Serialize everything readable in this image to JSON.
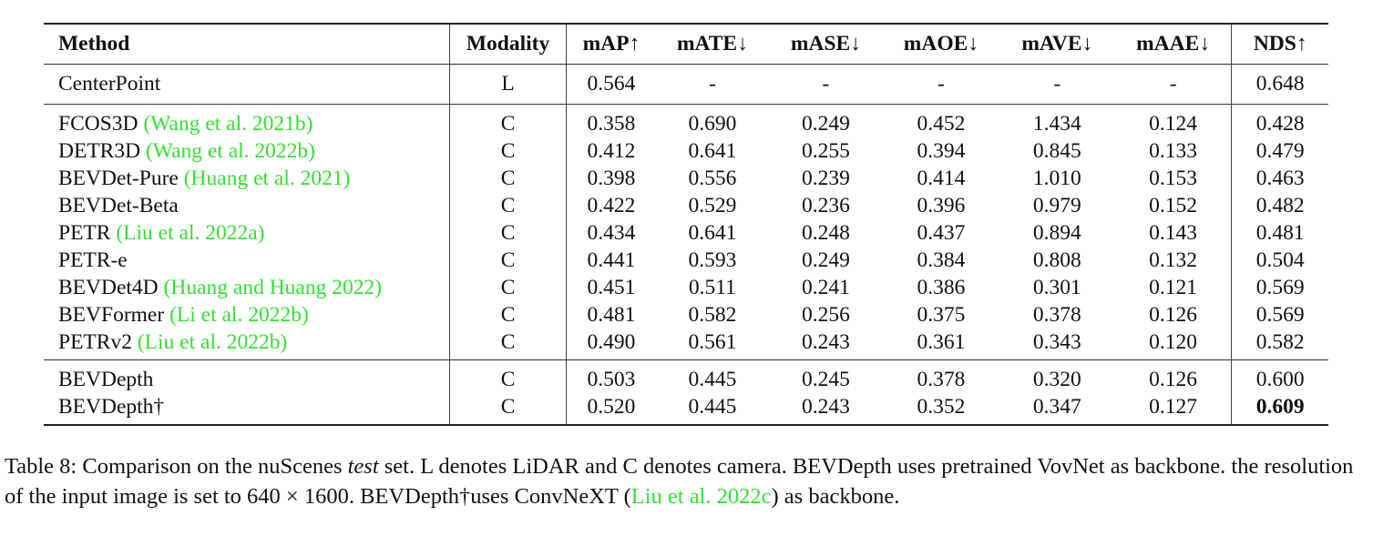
{
  "table": {
    "headers": {
      "method": "Method",
      "modality": "Modality",
      "map": "mAP↑",
      "mate": "mATE↓",
      "mase": "mASE↓",
      "maoe": "mAOE↓",
      "mave": "mAVE↓",
      "maae": "mAAE↓",
      "nds": "NDS↑"
    },
    "rows": [
      {
        "method": "CenterPoint",
        "cite": "",
        "modality": "L",
        "map": "0.564",
        "mate": "-",
        "mase": "-",
        "maoe": "-",
        "mave": "-",
        "maae": "-",
        "nds": "0.648"
      },
      {
        "method": "FCOS3D",
        "cite": "(Wang et al. 2021b)",
        "modality": "C",
        "map": "0.358",
        "mate": "0.690",
        "mase": "0.249",
        "maoe": "0.452",
        "mave": "1.434",
        "maae": "0.124",
        "nds": "0.428"
      },
      {
        "method": "DETR3D",
        "cite": "(Wang et al. 2022b)",
        "modality": "C",
        "map": "0.412",
        "mate": "0.641",
        "mase": "0.255",
        "maoe": "0.394",
        "mave": "0.845",
        "maae": "0.133",
        "nds": "0.479"
      },
      {
        "method": "BEVDet-Pure",
        "cite": "(Huang et al. 2021)",
        "modality": "C",
        "map": "0.398",
        "mate": "0.556",
        "mase": "0.239",
        "maoe": "0.414",
        "mave": "1.010",
        "maae": "0.153",
        "nds": "0.463"
      },
      {
        "method": "BEVDet-Beta",
        "cite": "",
        "modality": "C",
        "map": "0.422",
        "mate": "0.529",
        "mase": "0.236",
        "maoe": "0.396",
        "mave": "0.979",
        "maae": "0.152",
        "nds": "0.482"
      },
      {
        "method": "PETR",
        "cite": "(Liu et al. 2022a)",
        "modality": "C",
        "map": "0.434",
        "mate": "0.641",
        "mase": "0.248",
        "maoe": "0.437",
        "mave": "0.894",
        "maae": "0.143",
        "nds": "0.481"
      },
      {
        "method": "PETR-e",
        "cite": "",
        "modality": "C",
        "map": "0.441",
        "mate": "0.593",
        "mase": "0.249",
        "maoe": "0.384",
        "mave": "0.808",
        "maae": "0.132",
        "nds": "0.504"
      },
      {
        "method": "BEVDet4D",
        "cite": "(Huang and Huang 2022)",
        "modality": "C",
        "map": "0.451",
        "mate": "0.511",
        "mase": "0.241",
        "maoe": "0.386",
        "mave": "0.301",
        "maae": "0.121",
        "nds": "0.569"
      },
      {
        "method": "BEVFormer",
        "cite": "(Li et al. 2022b)",
        "modality": "C",
        "map": "0.481",
        "mate": "0.582",
        "mase": "0.256",
        "maoe": "0.375",
        "mave": "0.378",
        "maae": "0.126",
        "nds": "0.569"
      },
      {
        "method": "PETRv2",
        "cite": "(Liu et al. 2022b)",
        "modality": "C",
        "map": "0.490",
        "mate": "0.561",
        "mase": "0.243",
        "maoe": "0.361",
        "mave": "0.343",
        "maae": "0.120",
        "nds": "0.582"
      },
      {
        "method": "BEVDepth",
        "cite": "",
        "modality": "C",
        "map": "0.503",
        "mate": "0.445",
        "mase": "0.245",
        "maoe": "0.378",
        "mave": "0.320",
        "maae": "0.126",
        "nds": "0.600"
      },
      {
        "method": "BEVDepth†",
        "cite": "",
        "modality": "C",
        "map": "0.520",
        "mate": "0.445",
        "mase": "0.243",
        "maoe": "0.352",
        "mave": "0.347",
        "maae": "0.127",
        "nds": "0.609"
      }
    ]
  },
  "caption": {
    "part1": "Table 8: Comparison on the nuScenes ",
    "italic": "test",
    "part2": " set. L denotes LiDAR and C denotes camera. BEVDepth uses pretrained VovNet as backbone. the resolution of the input image is set to 640 × 1600.  BEVDepth†uses ConvNeXT (",
    "cite": "Liu et al. 2022c",
    "part3": ") as backbone."
  }
}
